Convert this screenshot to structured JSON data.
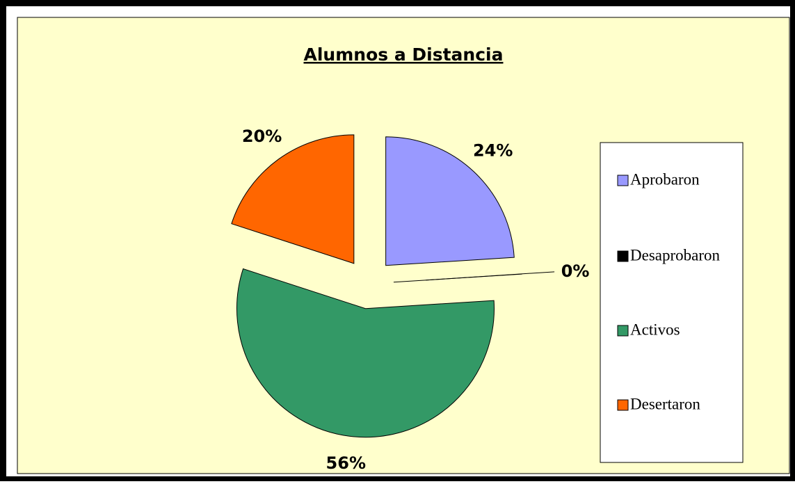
{
  "chart_data": {
    "type": "pie",
    "title": "Alumnos a Distancia",
    "categories": [
      "Aprobaron",
      "Desaprobaron",
      "Activos",
      "Desertaron"
    ],
    "values": [
      24,
      0,
      56,
      20
    ],
    "value_labels": [
      "24%",
      "0%",
      "56%",
      "20%"
    ],
    "colors": [
      "#9999ff",
      "#000000",
      "#339966",
      "#ff6600"
    ],
    "legend": "right"
  }
}
